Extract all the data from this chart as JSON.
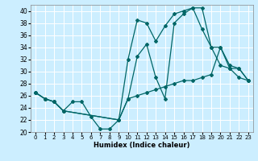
{
  "xlabel": "Humidex (Indice chaleur)",
  "bg_color": "#cceeff",
  "line_color": "#006666",
  "grid_color": "#ffffff",
  "xlim": [
    -0.5,
    23.5
  ],
  "ylim": [
    20,
    41
  ],
  "yticks": [
    20,
    22,
    24,
    26,
    28,
    30,
    32,
    34,
    36,
    38,
    40
  ],
  "xticks": [
    0,
    1,
    2,
    3,
    4,
    5,
    6,
    7,
    8,
    9,
    10,
    11,
    12,
    13,
    14,
    15,
    16,
    17,
    18,
    19,
    20,
    21,
    22,
    23
  ],
  "line1_x": [
    0,
    1,
    2,
    3,
    4,
    5,
    6,
    7,
    8,
    9,
    10,
    11,
    12,
    13,
    14,
    15,
    16,
    17,
    18,
    19,
    20,
    21,
    22,
    23
  ],
  "line1_y": [
    26.5,
    25.5,
    25.0,
    23.5,
    25.0,
    25.0,
    22.5,
    20.5,
    20.5,
    22.0,
    25.5,
    32.5,
    34.5,
    29.0,
    25.5,
    38.0,
    39.5,
    40.5,
    40.5,
    34.0,
    31.0,
    30.5,
    29.0,
    28.5
  ],
  "line2_x": [
    0,
    1,
    2,
    3,
    9,
    10,
    11,
    12,
    13,
    14,
    15,
    16,
    17,
    18,
    19,
    20,
    21,
    22,
    23
  ],
  "line2_y": [
    26.5,
    25.5,
    25.0,
    23.5,
    22.0,
    32.0,
    38.5,
    38.0,
    35.0,
    37.5,
    39.5,
    40.0,
    40.5,
    37.0,
    34.0,
    34.0,
    31.0,
    30.5,
    28.5
  ],
  "line3_x": [
    0,
    1,
    2,
    3,
    9,
    10,
    11,
    12,
    13,
    14,
    15,
    16,
    17,
    18,
    19,
    20,
    21,
    22,
    23
  ],
  "line3_y": [
    26.5,
    25.5,
    25.0,
    23.5,
    22.0,
    25.5,
    26.0,
    26.5,
    27.0,
    27.5,
    28.0,
    28.5,
    28.5,
    29.0,
    29.5,
    34.0,
    30.5,
    30.5,
    28.5
  ]
}
